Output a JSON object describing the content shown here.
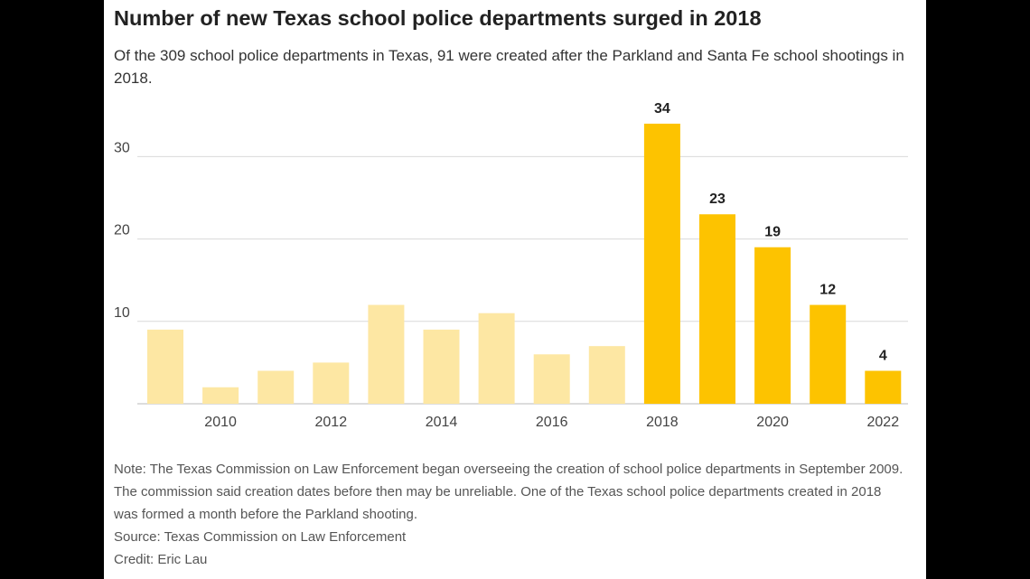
{
  "title": "Number of new Texas school police departments surged in 2018",
  "subtitle": "Of the 309 school police departments in Texas, 91 were created after the Parkland and Santa Fe school shootings in 2018.",
  "note": "Note: The Texas Commission on Law Enforcement began overseeing the creation of school police departments in September 2009. The commission said creation dates before then may be unreliable. One of the Texas school police departments created in 2018 was formed a month before the Parkland shooting.",
  "source": "Source: Texas Commission on Law Enforcement",
  "credit": "Credit: Eric Lau",
  "colors": {
    "highlight": "#FDC300",
    "muted": "#FDE7A3",
    "grid": "#d9d9d9",
    "axis": "#bbbbbb"
  },
  "chart_data": {
    "type": "bar",
    "categories": [
      2009,
      2010,
      2011,
      2012,
      2013,
      2014,
      2015,
      2016,
      2017,
      2018,
      2019,
      2020,
      2021,
      2022
    ],
    "values": [
      9,
      2,
      4,
      5,
      12,
      9,
      11,
      6,
      7,
      34,
      23,
      19,
      12,
      4
    ],
    "highlighted": [
      false,
      false,
      false,
      false,
      false,
      false,
      false,
      false,
      false,
      true,
      true,
      true,
      true,
      true
    ],
    "data_labels": [
      "",
      "",
      "",
      "",
      "",
      "",
      "",
      "",
      "",
      "34",
      "23",
      "19",
      "12",
      "4"
    ],
    "x_tick_labels": [
      "2010",
      "2012",
      "2014",
      "2016",
      "2018",
      "2020",
      "2022"
    ],
    "y_ticks": [
      10,
      20,
      30
    ],
    "ylim": [
      0,
      37
    ],
    "grid": true,
    "title": "Number of new Texas school police departments surged in 2018"
  }
}
